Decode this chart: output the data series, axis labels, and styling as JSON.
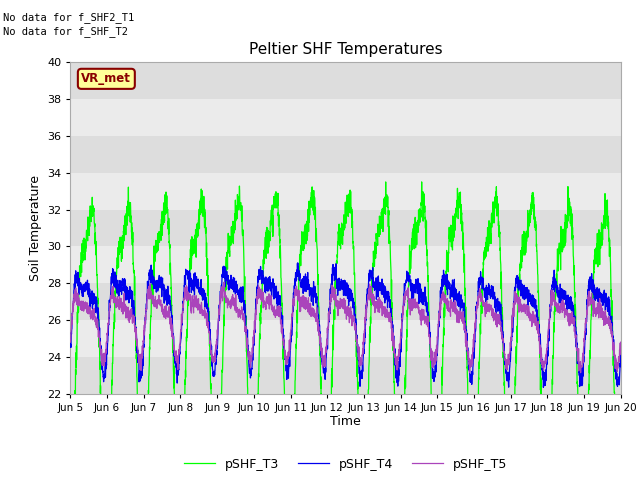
{
  "title": "Peltier SHF Temperatures",
  "xlabel": "Time",
  "ylabel": "Soil Temperature",
  "ylim": [
    22,
    40
  ],
  "xlim": [
    0,
    15
  ],
  "xtick_labels": [
    "Jun 5",
    "Jun 6",
    "Jun 7",
    "Jun 8",
    "Jun 9",
    "Jun 10",
    "Jun 11",
    "Jun 12",
    "Jun 13",
    "Jun 14",
    "Jun 15",
    "Jun 16",
    "Jun 17",
    "Jun 18",
    "Jun 19",
    "Jun 20"
  ],
  "xtick_positions": [
    0,
    1,
    2,
    3,
    4,
    5,
    6,
    7,
    8,
    9,
    10,
    11,
    12,
    13,
    14,
    15
  ],
  "color_T3": "#00FF00",
  "color_T4": "#0000EE",
  "color_T5": "#AA44BB",
  "legend_labels": [
    "pSHF_T3",
    "pSHF_T4",
    "pSHF_T5"
  ],
  "annotation_lines": [
    "No data for f_SHF2_T1",
    "No data for f_SHF_T2"
  ],
  "vr_met_label": "VR_met",
  "vr_met_bg": "#FFFF99",
  "vr_met_fg": "#880000",
  "band_colors": [
    "#DDDDDD",
    "#EBEBEB"
  ],
  "band_ranges": [
    [
      22,
      24
    ],
    [
      24,
      26
    ],
    [
      26,
      28
    ],
    [
      28,
      30
    ],
    [
      30,
      32
    ],
    [
      32,
      34
    ],
    [
      34,
      36
    ],
    [
      36,
      38
    ],
    [
      38,
      40
    ]
  ],
  "background_color": "#FFFFFF"
}
